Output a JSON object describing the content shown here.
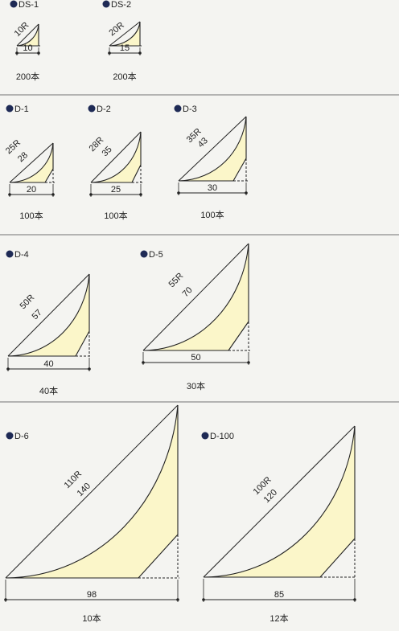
{
  "colors": {
    "background": "#f4f4f1",
    "fill": "#fbf6c9",
    "line": "#222222",
    "divider": "#8c8c8c",
    "bullet": "#1e2a55"
  },
  "items": [
    {
      "id": "ds1",
      "code": "DS-1",
      "radius": "10R",
      "arc": "",
      "width": "10",
      "qty": "200本"
    },
    {
      "id": "ds2",
      "code": "DS-2",
      "radius": "20R",
      "arc": "",
      "width": "15",
      "qty": "200本"
    },
    {
      "id": "d1",
      "code": "D-1",
      "radius": "25R",
      "arc": "28",
      "width": "20",
      "qty": "100本"
    },
    {
      "id": "d2",
      "code": "D-2",
      "radius": "28R",
      "arc": "35",
      "width": "25",
      "qty": "100本"
    },
    {
      "id": "d3",
      "code": "D-3",
      "radius": "35R",
      "arc": "43",
      "width": "30",
      "qty": "100本"
    },
    {
      "id": "d4",
      "code": "D-4",
      "radius": "50R",
      "arc": "57",
      "width": "40",
      "qty": "40本"
    },
    {
      "id": "d5",
      "code": "D-5",
      "radius": "55R",
      "arc": "70",
      "width": "50",
      "qty": "30本"
    },
    {
      "id": "d6",
      "code": "D-6",
      "radius": "110R",
      "arc": "140",
      "width": "98",
      "qty": "10本"
    },
    {
      "id": "d100",
      "code": "D-100",
      "radius": "100R",
      "arc": "120",
      "width": "85",
      "qty": "12本"
    }
  ]
}
